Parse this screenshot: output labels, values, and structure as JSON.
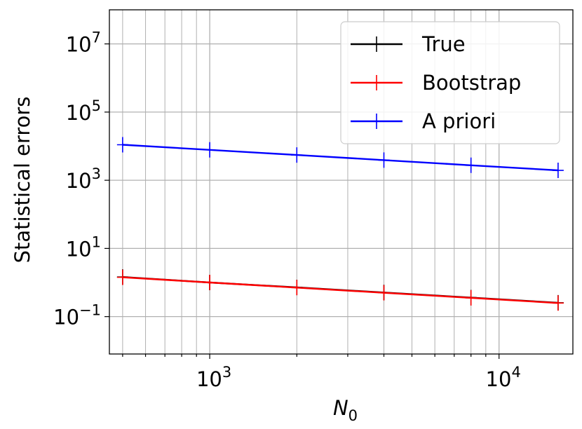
{
  "chart_data": {
    "type": "line",
    "xscale": "log",
    "yscale": "log",
    "xlabel_base": "N",
    "xlabel_sub": "0",
    "ylabel": "Statistical errors",
    "xlim": [
      450,
      18000
    ],
    "ylim": [
      0.008,
      100000000
    ],
    "grid": true,
    "x_minor_grid": true,
    "legend_position": "top-right",
    "x_ticks": [
      {
        "value": 1000,
        "base": "10",
        "exp": "3"
      },
      {
        "value": 10000,
        "base": "10",
        "exp": "4"
      }
    ],
    "y_ticks": [
      {
        "value": 0.1,
        "base": "10",
        "exp": "−1"
      },
      {
        "value": 10,
        "base": "10",
        "exp": "1"
      },
      {
        "value": 1000,
        "base": "10",
        "exp": "3"
      },
      {
        "value": 100000,
        "base": "10",
        "exp": "5"
      },
      {
        "value": 10000000,
        "base": "10",
        "exp": "7"
      }
    ],
    "x": [
      500,
      1000,
      2000,
      4000,
      8000,
      16000
    ],
    "series": [
      {
        "name": "True",
        "color": "#000000",
        "values": [
          1.45,
          1.0,
          0.72,
          0.51,
          0.36,
          0.255
        ]
      },
      {
        "name": "Bootstrap",
        "color": "#ff0000",
        "values": [
          1.42,
          1.0,
          0.71,
          0.5,
          0.355,
          0.25
        ]
      },
      {
        "name": "A priori",
        "color": "#0000ff",
        "values": [
          11000,
          7800,
          5500,
          3900,
          2750,
          1950
        ]
      }
    ]
  }
}
